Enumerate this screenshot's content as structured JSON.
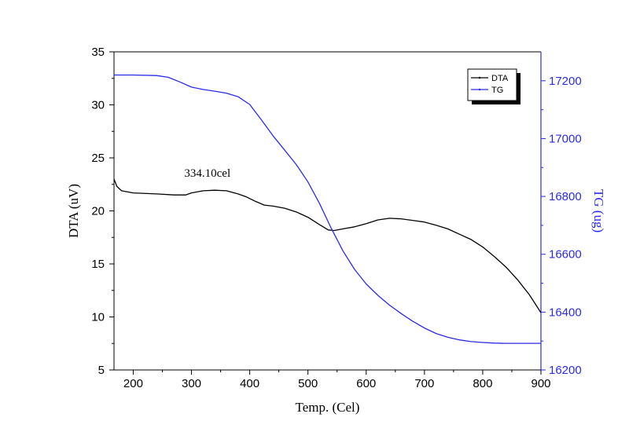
{
  "chart_data": {
    "type": "line",
    "xlabel": "Temp.  (Cel)",
    "ylabel_left": "DTA  (uV)",
    "ylabel_right": "TG  (ug)",
    "xlim": [
      167,
      900
    ],
    "ylim_left": [
      5,
      35
    ],
    "ylim_right": [
      16200,
      17300
    ],
    "x_ticks": [
      200,
      300,
      400,
      500,
      600,
      700,
      800,
      900
    ],
    "y_ticks_left": [
      5,
      10,
      15,
      20,
      25,
      30,
      35
    ],
    "y_ticks_right": [
      16200,
      16400,
      16600,
      16800,
      17000,
      17200
    ],
    "grid": false,
    "legend_position": "top-right",
    "annotation": {
      "text": "334.10cel",
      "x": 330,
      "y": 23.6
    },
    "series": [
      {
        "name": "DTA",
        "axis": "left",
        "color": "#000000",
        "x": [
          167,
          172,
          180,
          200,
          240,
          270,
          290,
          300,
          320,
          340,
          360,
          380,
          395,
          410,
          425,
          440,
          460,
          480,
          500,
          520,
          535,
          545,
          560,
          580,
          600,
          620,
          640,
          660,
          680,
          700,
          720,
          740,
          760,
          780,
          800,
          820,
          840,
          860,
          880,
          900
        ],
        "values": [
          23.0,
          22.3,
          21.9,
          21.7,
          21.6,
          21.5,
          21.5,
          21.7,
          21.9,
          21.95,
          21.9,
          21.6,
          21.3,
          20.9,
          20.55,
          20.45,
          20.25,
          19.9,
          19.4,
          18.7,
          18.2,
          18.15,
          18.3,
          18.5,
          18.8,
          19.15,
          19.3,
          19.25,
          19.1,
          18.95,
          18.65,
          18.3,
          17.8,
          17.3,
          16.6,
          15.7,
          14.7,
          13.5,
          12.1,
          10.4
        ]
      },
      {
        "name": "TG",
        "axis": "right",
        "color": "#2a2ae8",
        "x": [
          167,
          200,
          240,
          260,
          280,
          300,
          320,
          340,
          360,
          380,
          400,
          420,
          440,
          460,
          480,
          500,
          520,
          540,
          560,
          580,
          600,
          620,
          640,
          660,
          680,
          700,
          720,
          740,
          760,
          780,
          800,
          820,
          840,
          860,
          880,
          900
        ],
        "values": [
          17220,
          17220,
          17218,
          17212,
          17196,
          17178,
          17170,
          17164,
          17157,
          17145,
          17118,
          17065,
          17010,
          16960,
          16910,
          16850,
          16775,
          16690,
          16612,
          16548,
          16497,
          16458,
          16424,
          16395,
          16368,
          16345,
          16326,
          16313,
          16304,
          16298,
          16295,
          16293,
          16292,
          16292,
          16292,
          16292
        ]
      }
    ]
  }
}
